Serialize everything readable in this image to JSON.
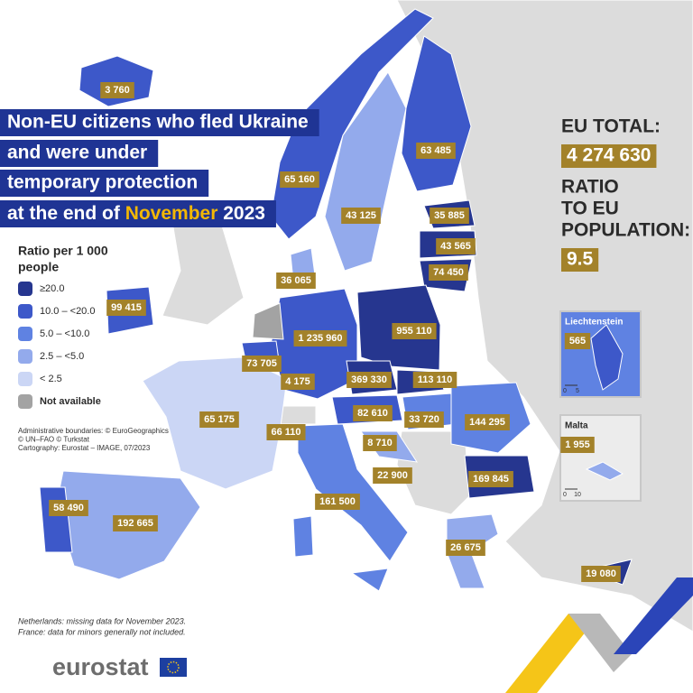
{
  "title": {
    "lines": [
      "Non-EU citizens who fled Ukraine",
      "and were under",
      "temporary protection"
    ],
    "last_line": {
      "before": "at the end of",
      "highlight": "November",
      "after": "2023"
    }
  },
  "summary": {
    "total_label": "EU TOTAL:",
    "total_value": "4 274 630",
    "ratio_label": [
      "RATIO",
      "TO EU",
      "POPULATION:"
    ],
    "ratio_value": "9.5"
  },
  "legend": {
    "title": [
      "Ratio per 1 000",
      "people"
    ],
    "items": [
      {
        "label": "≥20.0",
        "color": "#26368f"
      },
      {
        "label": "10.0 – <20.0",
        "color": "#3d58c9"
      },
      {
        "label": "5.0 – <10.0",
        "color": "#5f82e2"
      },
      {
        "label": "2.5 – <5.0",
        "color": "#93aaec"
      },
      {
        "label": "< 2.5",
        "color": "#cbd6f5"
      },
      {
        "label": "Not available",
        "color": "#a3a3a3"
      }
    ]
  },
  "map_labels": [
    "3 760",
    "63 485",
    "65 160",
    "43 125",
    "35 885",
    "43 565",
    "74 450",
    "36 065",
    "99 415",
    "1 235 960",
    "955 110",
    "73 705",
    "4 175",
    "369 330",
    "113 110",
    "65 175",
    "66 110",
    "82 610",
    "33 720",
    "144 295",
    "8 710",
    "22 900",
    "169 845",
    "161 500",
    "58 490",
    "192 665",
    "26 675",
    "19 080"
  ],
  "insets": [
    {
      "title": "Liechtenstein",
      "value": "565",
      "scale": [
        "0",
        "5"
      ]
    },
    {
      "title": "Malta",
      "value": "1 955",
      "scale": [
        "0",
        "10"
      ]
    }
  ],
  "credits": [
    "Administrative boundaries: © EuroGeographics",
    "© UN–FAO © Turkstat",
    "Cartography: Eurostat – IMAGE, 07/2023"
  ],
  "notes": [
    "Netherlands: missing data for November 2023.",
    "France: data for minors generally not included."
  ],
  "logo": "eurostat"
}
